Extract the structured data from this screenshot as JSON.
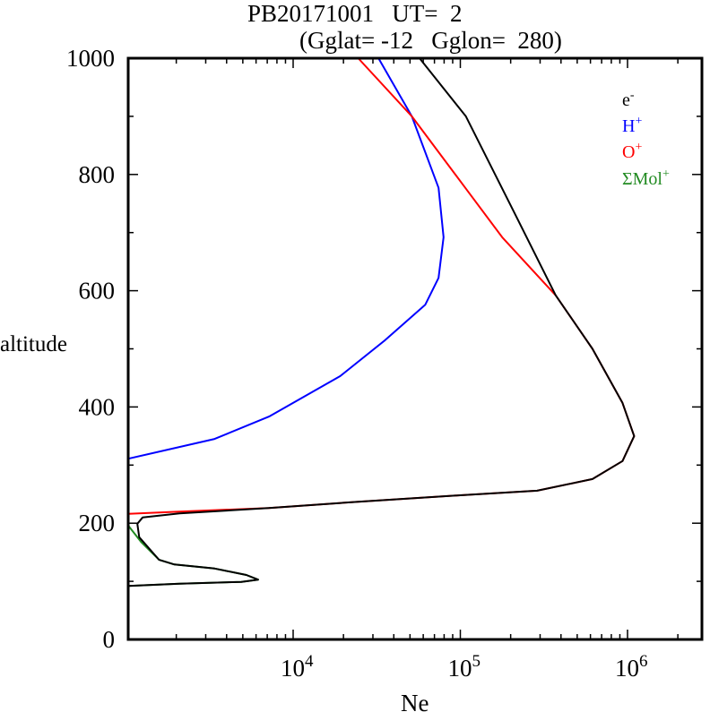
{
  "chart_data": {
    "type": "line",
    "title_line1": "PB20171001   UT=  2",
    "title_line2": "(Gglat= -12   Gglon=  280)",
    "xlabel": "Ne",
    "ylabel": "altitude",
    "xscale": "log",
    "xlim": [
      1000,
      2800000
    ],
    "ylim": [
      0,
      1000
    ],
    "x_tick_labels": [
      {
        "base": "10",
        "exp": "4",
        "value": 10000
      },
      {
        "base": "10",
        "exp": "5",
        "value": 100000
      },
      {
        "base": "10",
        "exp": "6",
        "value": 1000000
      }
    ],
    "y_tick_labels": [
      {
        "label": "0",
        "value": 0
      },
      {
        "label": "200",
        "value": 200
      },
      {
        "label": "400",
        "value": 400
      },
      {
        "label": "600",
        "value": 600
      },
      {
        "label": "800",
        "value": 800
      },
      {
        "label": "1000",
        "value": 1000
      }
    ],
    "legend_position": "top-right",
    "series": [
      {
        "name": "e-",
        "legend_base": "e",
        "legend_sup": "-",
        "color": "#000000",
        "points": [
          [
            57000,
            1000
          ],
          [
            108000,
            900
          ],
          [
            214000,
            730
          ],
          [
            372000,
            592
          ],
          [
            617000,
            500
          ],
          [
            933000,
            407
          ],
          [
            1096000,
            350
          ],
          [
            933000,
            307
          ],
          [
            617000,
            276
          ],
          [
            288000,
            256
          ],
          [
            100000,
            248
          ],
          [
            24500,
            237
          ],
          [
            7160,
            226
          ],
          [
            2090,
            217
          ],
          [
            1260,
            210
          ],
          [
            1170,
            199
          ],
          [
            1200,
            176
          ],
          [
            1580,
            137
          ],
          [
            1950,
            129
          ],
          [
            3390,
            122
          ],
          [
            5250,
            111
          ],
          [
            6170,
            103
          ],
          [
            4900,
            99
          ],
          [
            2090,
            96
          ],
          [
            1020,
            92
          ]
        ]
      },
      {
        "name": "H+",
        "legend_base": "H",
        "legend_sup": "+",
        "color": "#0000ff",
        "points": [
          [
            32400,
            1000
          ],
          [
            51300,
            900
          ],
          [
            74100,
            777
          ],
          [
            79400,
            692
          ],
          [
            74100,
            622
          ],
          [
            61700,
            576
          ],
          [
            35500,
            515
          ],
          [
            19100,
            453
          ],
          [
            7240,
            384
          ],
          [
            3390,
            345
          ],
          [
            1020,
            311
          ]
        ]
      },
      {
        "name": "O+",
        "legend_base": "O",
        "legend_sup": "+",
        "color": "#ff0000",
        "points": [
          [
            24500,
            1000
          ],
          [
            51300,
            900
          ],
          [
            107000,
            777
          ],
          [
            178000,
            692
          ],
          [
            372000,
            592
          ],
          [
            617000,
            500
          ],
          [
            933000,
            407
          ],
          [
            1096000,
            350
          ],
          [
            933000,
            307
          ],
          [
            617000,
            276
          ],
          [
            288000,
            256
          ],
          [
            100000,
            248
          ],
          [
            24500,
            237
          ],
          [
            7160,
            226
          ],
          [
            2090,
            220
          ],
          [
            1000,
            216
          ]
        ]
      },
      {
        "name": "ΣMol+",
        "legend_base": "ΣMol",
        "legend_sup": "+",
        "color": "#228b22",
        "points": [
          [
            1000,
            196
          ],
          [
            1230,
            168
          ],
          [
            1580,
            137
          ],
          [
            1950,
            129
          ],
          [
            3390,
            122
          ],
          [
            5250,
            111
          ],
          [
            6170,
            103
          ],
          [
            4900,
            99
          ],
          [
            2090,
            96
          ],
          [
            1000,
            92
          ]
        ]
      }
    ]
  }
}
